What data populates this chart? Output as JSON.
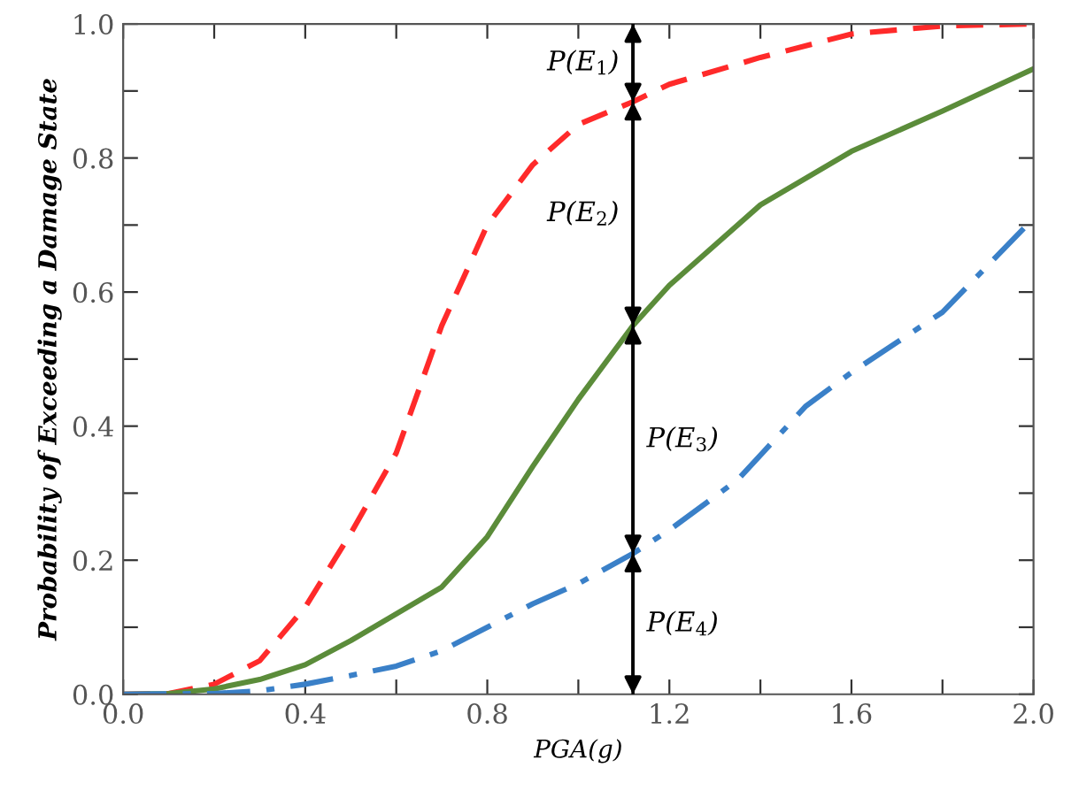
{
  "chart_data": {
    "type": "line",
    "xlabel": "PGA(g)",
    "ylabel": "Probability of Exceeding a Damage State",
    "xlim": [
      0,
      2.0
    ],
    "ylim": [
      0,
      1.0
    ],
    "xticks": [
      {
        "value": 0,
        "label": "0.0"
      },
      {
        "value": 0.2,
        "label": null
      },
      0.4,
      {
        "value": 0.6,
        "label": null
      },
      0.8,
      {
        "value": 1.0,
        "label": null
      },
      1.2,
      {
        "value": 1.4,
        "label": null
      },
      1.6,
      {
        "value": 1.8,
        "label": null
      },
      {
        "value": 2.0,
        "label": "2.0"
      }
    ],
    "yticks": [
      {
        "value": 0,
        "label": "0.0"
      },
      {
        "value": 0.1,
        "label": null
      },
      0.2,
      {
        "value": 0.3,
        "label": null
      },
      0.4,
      {
        "value": 0.5,
        "label": null
      },
      0.6,
      {
        "value": 0.7,
        "label": null
      },
      0.8,
      {
        "value": 0.9,
        "label": null
      },
      {
        "value": 1,
        "label": "1.0"
      }
    ],
    "grid": false,
    "marker": "none",
    "ref_lines": [
      {
        "axis": "x",
        "value": 1.12
      }
    ],
    "series": [
      {
        "color": "#ff2a2a",
        "line_style": "dashed",
        "x": [
          0,
          0.1,
          0.2,
          0.3,
          0.4,
          0.5,
          0.6,
          0.7,
          0.8,
          0.9,
          1.0,
          1.12,
          1.2,
          1.4,
          1.6,
          1.8,
          2.0
        ],
        "values": [
          0,
          0.001,
          0.015,
          0.05,
          0.13,
          0.24,
          0.36,
          0.55,
          0.7,
          0.79,
          0.85,
          0.884,
          0.91,
          0.95,
          0.985,
          0.997,
          1.0
        ]
      },
      {
        "color": "#5b8c3a",
        "line_style": "solid",
        "x": [
          0,
          0.1,
          0.2,
          0.3,
          0.4,
          0.5,
          0.6,
          0.7,
          0.8,
          0.9,
          1.0,
          1.12,
          1.2,
          1.4,
          1.6,
          1.8,
          2.0
        ],
        "values": [
          0,
          0.001,
          0.008,
          0.022,
          0.044,
          0.08,
          0.12,
          0.16,
          0.235,
          0.34,
          0.44,
          0.55,
          0.61,
          0.73,
          0.81,
          0.87,
          0.933
        ]
      },
      {
        "color": "#3a80c8",
        "line_style": "dashdot",
        "x": [
          0,
          0.2,
          0.3,
          0.4,
          0.5,
          0.6,
          0.7,
          0.8,
          0.9,
          1.0,
          1.12,
          1.2,
          1.35,
          1.5,
          1.6,
          1.8,
          2.0
        ],
        "values": [
          0,
          0.001,
          0.005,
          0.015,
          0.028,
          0.042,
          0.065,
          0.1,
          0.135,
          0.165,
          0.21,
          0.245,
          0.32,
          0.43,
          0.48,
          0.57,
          0.71
        ]
      }
    ],
    "annotations": [
      "P(E$_{1}$)",
      "P(E$_{2}$)",
      "P(E$_{3}$)",
      "P(E$_{4}$)"
    ]
  }
}
